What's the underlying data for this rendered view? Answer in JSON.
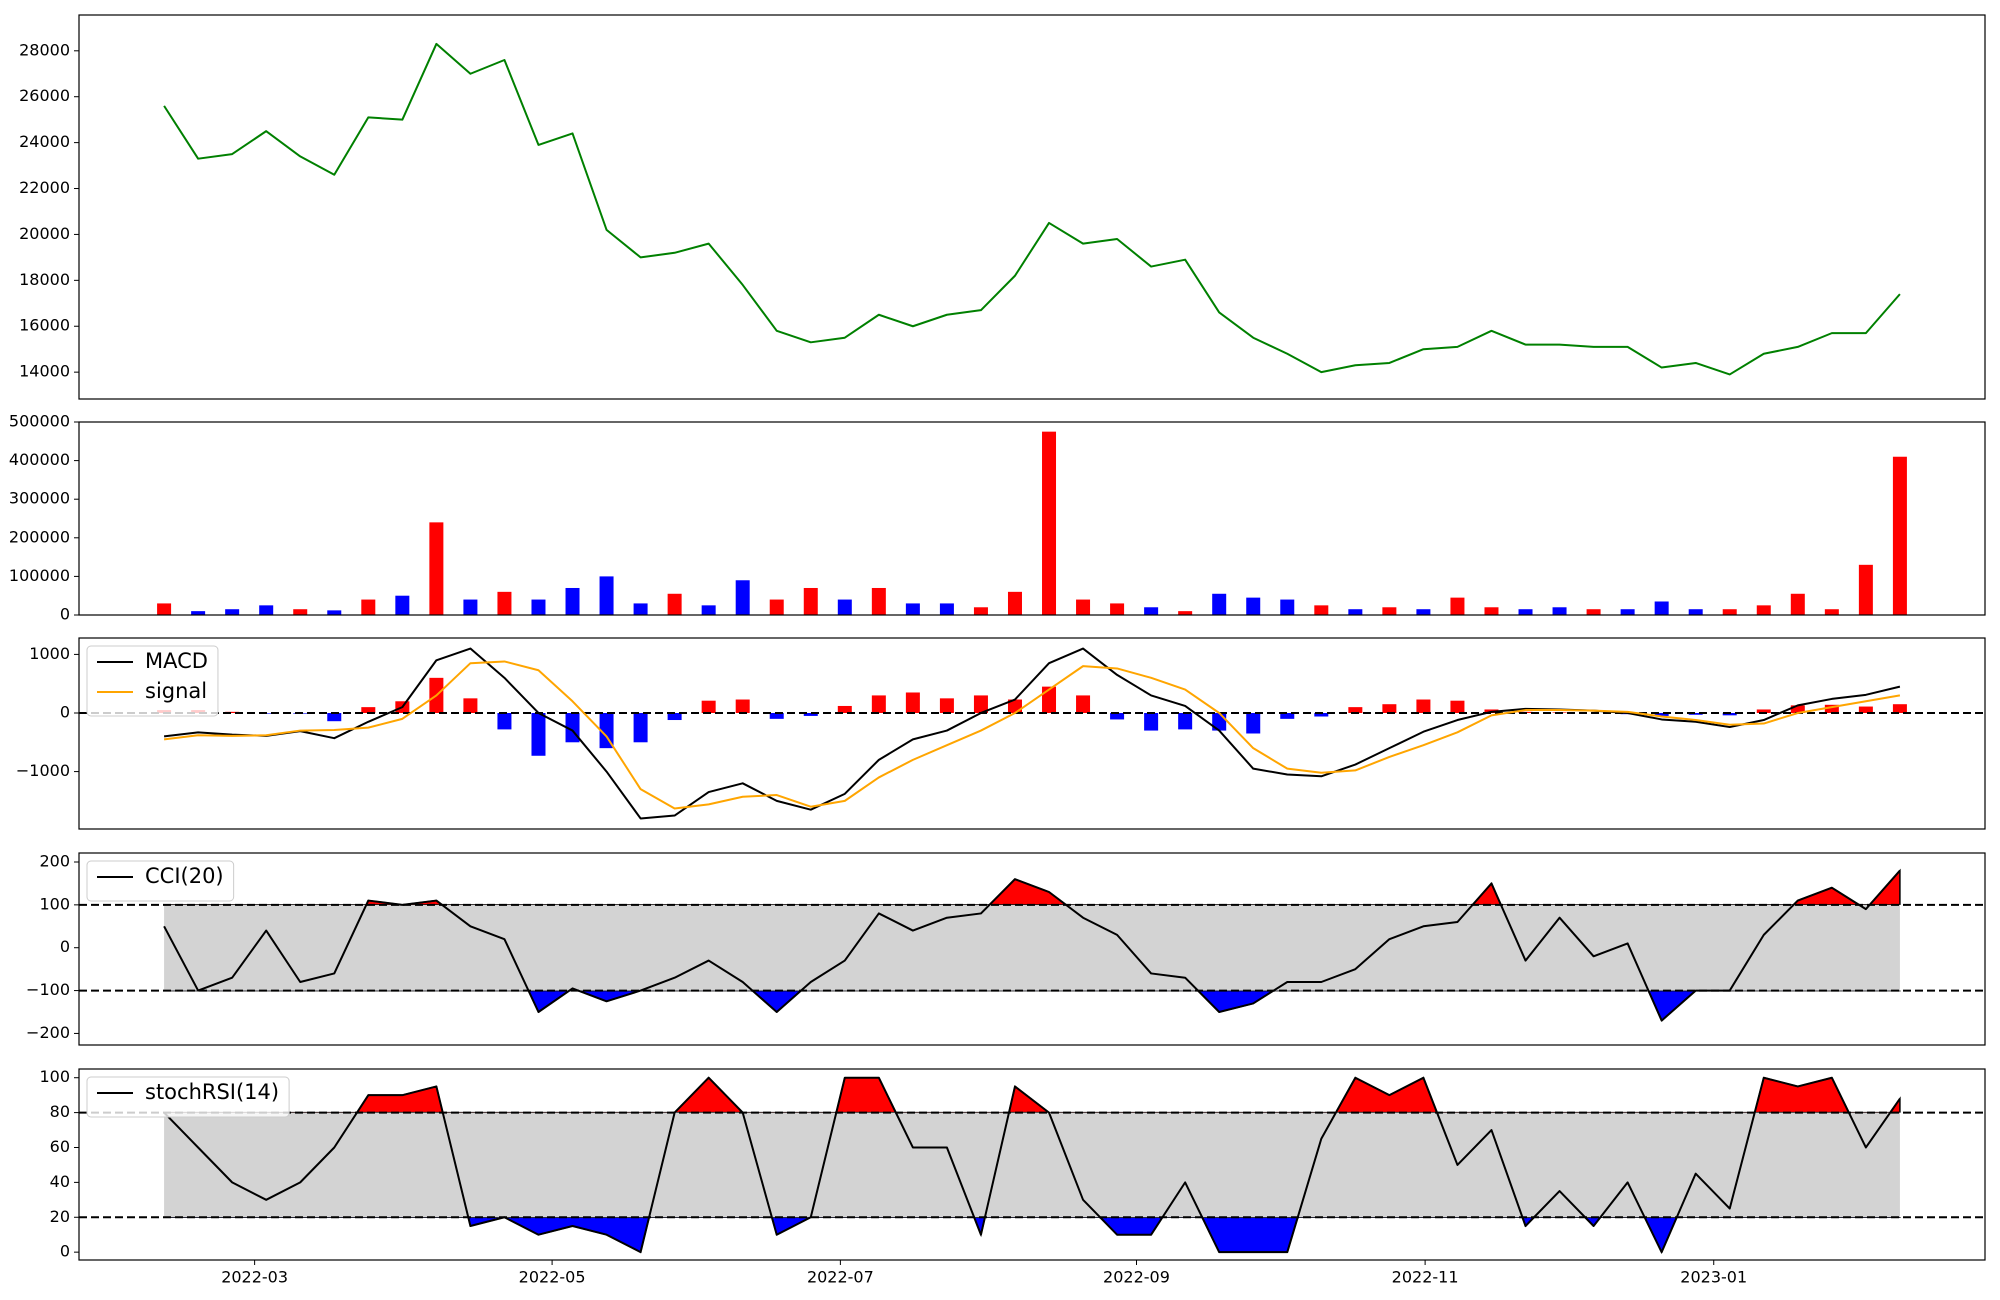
{
  "chart_data": [
    {
      "type": "line",
      "color": "#008000",
      "xlim": [
        -2.5,
        53.5
      ],
      "ylim": [
        12830,
        29560
      ],
      "yticks": [
        14000,
        16000,
        18000,
        20000,
        22000,
        24000,
        26000,
        28000
      ],
      "values": [
        25600,
        23300,
        23500,
        24500,
        23400,
        22600,
        25100,
        25000,
        28300,
        27000,
        27600,
        23900,
        24400,
        20200,
        19000,
        19200,
        19600,
        17800,
        15800,
        15300,
        15500,
        16500,
        16000,
        16500,
        16700,
        18200,
        20500,
        19600,
        19800,
        18600,
        18900,
        16600,
        15500,
        14800,
        14000,
        14300,
        14400,
        15000,
        15100,
        15800,
        15200,
        15200,
        15100,
        15100,
        14200,
        14400,
        13900,
        14800,
        15100,
        15700,
        15700,
        17400
      ]
    },
    {
      "type": "bar",
      "xlim": [
        -2.5,
        53.5
      ],
      "ylim": [
        0,
        500000
      ],
      "yticks": [
        0,
        100000,
        200000,
        300000,
        400000,
        500000
      ],
      "values": [
        30000,
        10000,
        15000,
        25000,
        15000,
        12000,
        40000,
        50000,
        240000,
        40000,
        60000,
        40000,
        70000,
        100000,
        30000,
        55000,
        25000,
        90000,
        40000,
        70000,
        40000,
        70000,
        30000,
        30000,
        20000,
        60000,
        475000,
        40000,
        30000,
        20000,
        10000,
        55000,
        45000,
        40000,
        25000,
        15000,
        20000,
        15000,
        45000,
        20000,
        15000,
        20000,
        15000,
        15000,
        35000,
        15000,
        15000,
        25000,
        55000,
        15000,
        130000,
        410000
      ],
      "colors": [
        "#ff0000",
        "#0000ff",
        "#0000ff",
        "#0000ff",
        "#ff0000",
        "#0000ff",
        "#ff0000",
        "#0000ff",
        "#ff0000",
        "#0000ff",
        "#ff0000",
        "#0000ff",
        "#0000ff",
        "#0000ff",
        "#0000ff",
        "#ff0000",
        "#0000ff",
        "#0000ff",
        "#ff0000",
        "#ff0000",
        "#0000ff",
        "#ff0000",
        "#0000ff",
        "#0000ff",
        "#ff0000",
        "#ff0000",
        "#ff0000",
        "#ff0000",
        "#ff0000",
        "#0000ff",
        "#ff0000",
        "#0000ff",
        "#0000ff",
        "#0000ff",
        "#ff0000",
        "#0000ff",
        "#ff0000",
        "#0000ff",
        "#ff0000",
        "#ff0000",
        "#0000ff",
        "#0000ff",
        "#ff0000",
        "#0000ff",
        "#0000ff",
        "#0000ff",
        "#ff0000",
        "#ff0000",
        "#ff0000",
        "#ff0000",
        "#ff0000",
        "#ff0000"
      ]
    },
    {
      "type": "macd",
      "xlim": [
        -2.5,
        53.5
      ],
      "ylim": [
        -1980,
        1280
      ],
      "yticks": [
        {
          "value": -1000,
          "label": "−1000"
        },
        0,
        1000
      ],
      "hlines": [
        0
      ],
      "legend": "upper left",
      "series": [
        {
          "name": "MACD",
          "color": "#000000",
          "values": [
            -400,
            -330,
            -370,
            -390,
            -310,
            -430,
            -150,
            100,
            900,
            1100,
            600,
            0,
            -300,
            -1000,
            -1800,
            -1750,
            -1350,
            -1200,
            -1500,
            -1650,
            -1380,
            -800,
            -450,
            -300,
            0,
            230,
            850,
            1100,
            650,
            300,
            120,
            -300,
            -950,
            -1050,
            -1080,
            -880,
            -600,
            -320,
            -120,
            20,
            70,
            60,
            40,
            0,
            -110,
            -150,
            -240,
            -120,
            130,
            240,
            310,
            450
          ]
        },
        {
          "name": "signal",
          "color": "#ffa500",
          "values": [
            -450,
            -380,
            -390,
            -380,
            -300,
            -290,
            -250,
            -100,
            300,
            850,
            880,
            730,
            200,
            -400,
            -1300,
            -1630,
            -1560,
            -1430,
            -1400,
            -1600,
            -1500,
            -1100,
            -800,
            -550,
            -300,
            0,
            400,
            800,
            760,
            600,
            400,
            0,
            -600,
            -950,
            -1020,
            -980,
            -750,
            -550,
            -330,
            -40,
            50,
            50,
            40,
            20,
            -60,
            -120,
            -200,
            -180,
            0,
            100,
            200,
            300
          ]
        }
      ],
      "histogram": {
        "up_color": "#ff0000",
        "down_color": "#0000ff",
        "values": [
          50,
          50,
          20,
          -10,
          -10,
          -140,
          100,
          200,
          600,
          250,
          -280,
          -730,
          -500,
          -600,
          -500,
          -120,
          210,
          230,
          -100,
          -50,
          120,
          300,
          350,
          250,
          300,
          230,
          450,
          300,
          -110,
          -300,
          -280,
          -300,
          -350,
          -100,
          -60,
          100,
          150,
          230,
          210,
          60,
          20,
          10,
          0,
          -20,
          -50,
          -30,
          -40,
          60,
          130,
          140,
          110,
          150
        ]
      }
    },
    {
      "type": "oscillator",
      "xlim": [
        -2.5,
        53.5
      ],
      "ylim": [
        -227,
        221
      ],
      "yticks": [
        {
          "value": -200,
          "label": "−200"
        },
        {
          "value": -100,
          "label": "−100"
        },
        0,
        100,
        200
      ],
      "hlines": [
        100,
        -100
      ],
      "band_color": "#d3d3d3",
      "upper_fill": "#ff0000",
      "lower_fill": "#0000ff",
      "legend": "upper left",
      "series": [
        {
          "name": "CCI(20)",
          "color": "#000000",
          "values": [
            50,
            -100,
            -70,
            40,
            -80,
            -60,
            110,
            100,
            110,
            50,
            20,
            -150,
            -95,
            -125,
            -100,
            -70,
            -30,
            -80,
            -150,
            -80,
            -30,
            80,
            40,
            70,
            80,
            160,
            130,
            70,
            30,
            -60,
            -70,
            -150,
            -130,
            -80,
            -80,
            -50,
            20,
            50,
            60,
            150,
            -30,
            70,
            -20,
            10,
            -170,
            -100,
            -100,
            30,
            110,
            140,
            90,
            180
          ]
        }
      ]
    },
    {
      "type": "oscillator",
      "xlim": [
        -2.5,
        53.5
      ],
      "ylim": [
        -4.5,
        105
      ],
      "yticks": [
        0,
        20,
        40,
        60,
        80,
        100
      ],
      "xticks": [
        {
          "value": 2.66,
          "label": "2022-03"
        },
        {
          "value": 11.4,
          "label": "2022-05"
        },
        {
          "value": 19.87,
          "label": "2022-07"
        },
        {
          "value": 28.57,
          "label": "2022-09"
        },
        {
          "value": 37.05,
          "label": "2022-11"
        },
        {
          "value": 45.53,
          "label": "2023-01"
        }
      ],
      "hlines": [
        80,
        20
      ],
      "band_color": "#d3d3d3",
      "upper_fill": "#ff0000",
      "lower_fill": "#0000ff",
      "legend": "upper left",
      "series": [
        {
          "name": "stochRSI(14)",
          "color": "#000000",
          "values": [
            80,
            60,
            40,
            30,
            40,
            60,
            90,
            90,
            95,
            15,
            20,
            10,
            15,
            10,
            0,
            80,
            100,
            80,
            10,
            20,
            100,
            100,
            60,
            60,
            10,
            95,
            80,
            30,
            10,
            10,
            40,
            0,
            0,
            0,
            65,
            100,
            90,
            100,
            50,
            70,
            15,
            35,
            15,
            40,
            0,
            45,
            25,
            100,
            95,
            100,
            60,
            88
          ]
        }
      ]
    }
  ]
}
